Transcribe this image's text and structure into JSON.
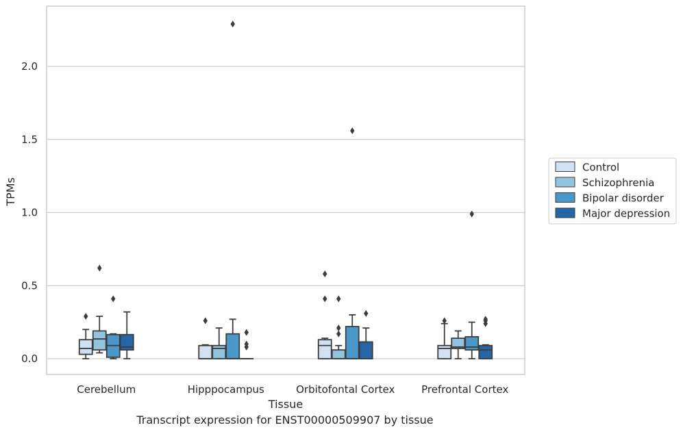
{
  "caption": "Transcript expression for ENST00000509907 by tissue",
  "chart_data": {
    "type": "box",
    "xlabel": "Tissue",
    "ylabel": "TPMs",
    "ylim": [
      -0.11,
      2.4
    ],
    "yticks": [
      "0.0",
      "0.5",
      "1.0",
      "1.5",
      "2.0"
    ],
    "ytick_values": [
      0.0,
      0.5,
      1.0,
      1.5,
      2.0
    ],
    "grid": "horizontal",
    "legend_position": "right",
    "categories": [
      "Cerebellum",
      "Hipppocampus",
      "Orbitofontal Cortex",
      "Prefrontal Cortex"
    ],
    "series": [
      {
        "name": "Control",
        "color": "#cfe1f2",
        "boxes": [
          {
            "whislo": 0.0,
            "q1": 0.03,
            "med": 0.07,
            "q3": 0.13,
            "whishi": 0.2,
            "fliers": [
              0.29
            ]
          },
          {
            "whislo": 0.0,
            "q1": 0.0,
            "med": 0.0,
            "q3": 0.09,
            "whishi": 0.095,
            "fliers": [
              0.26
            ]
          },
          {
            "whislo": 0.0,
            "q1": 0.0,
            "med": 0.09,
            "q3": 0.13,
            "whishi": 0.14,
            "fliers": [
              0.41,
              0.58
            ]
          },
          {
            "whislo": 0.0,
            "q1": 0.0,
            "med": 0.07,
            "q3": 0.09,
            "whishi": 0.24,
            "fliers": [
              0.26
            ]
          }
        ]
      },
      {
        "name": "Schizophrenia",
        "color": "#93c4de",
        "boxes": [
          {
            "whislo": 0.04,
            "q1": 0.06,
            "med": 0.135,
            "q3": 0.19,
            "whishi": 0.29,
            "fliers": [
              0.62
            ]
          },
          {
            "whislo": 0.0,
            "q1": 0.0,
            "med": 0.07,
            "q3": 0.09,
            "whishi": 0.21,
            "fliers": []
          },
          {
            "whislo": 0.0,
            "q1": 0.0,
            "med": 0.0,
            "q3": 0.06,
            "whishi": 0.09,
            "fliers": [
              0.17,
              0.21,
              0.41
            ]
          },
          {
            "whislo": 0.0,
            "q1": 0.07,
            "med": 0.08,
            "q3": 0.14,
            "whishi": 0.19,
            "fliers": []
          }
        ]
      },
      {
        "name": "Bipolar disorder",
        "color": "#4a98c9",
        "boxes": [
          {
            "whislo": 0.0,
            "q1": 0.01,
            "med": 0.09,
            "q3": 0.165,
            "whishi": 0.17,
            "fliers": [
              0.41
            ]
          },
          {
            "whislo": 0.0,
            "q1": 0.0,
            "med": 0.0,
            "q3": 0.17,
            "whishi": 0.27,
            "fliers": [
              2.29
            ]
          },
          {
            "whislo": 0.0,
            "q1": 0.0,
            "med": 0.0,
            "q3": 0.22,
            "whishi": 0.3,
            "fliers": [
              1.56
            ]
          },
          {
            "whislo": 0.0,
            "q1": 0.06,
            "med": 0.08,
            "q3": 0.15,
            "whishi": 0.25,
            "fliers": [
              0.99
            ]
          }
        ]
      },
      {
        "name": "Major depression",
        "color": "#2565a8",
        "boxes": [
          {
            "whislo": 0.0,
            "q1": 0.06,
            "med": 0.08,
            "q3": 0.165,
            "whishi": 0.32,
            "fliers": []
          },
          {
            "whislo": 0.0,
            "q1": 0.0,
            "med": 0.0,
            "q3": 0.0,
            "whishi": 0.0,
            "fliers": [
              0.08,
              0.1,
              0.18
            ]
          },
          {
            "whislo": 0.0,
            "q1": 0.0,
            "med": 0.0,
            "q3": 0.115,
            "whishi": 0.21,
            "fliers": [
              0.31
            ]
          },
          {
            "whislo": 0.0,
            "q1": 0.0,
            "med": 0.06,
            "q3": 0.09,
            "whishi": 0.095,
            "fliers": [
              0.24,
              0.26,
              0.27
            ]
          }
        ]
      }
    ]
  }
}
